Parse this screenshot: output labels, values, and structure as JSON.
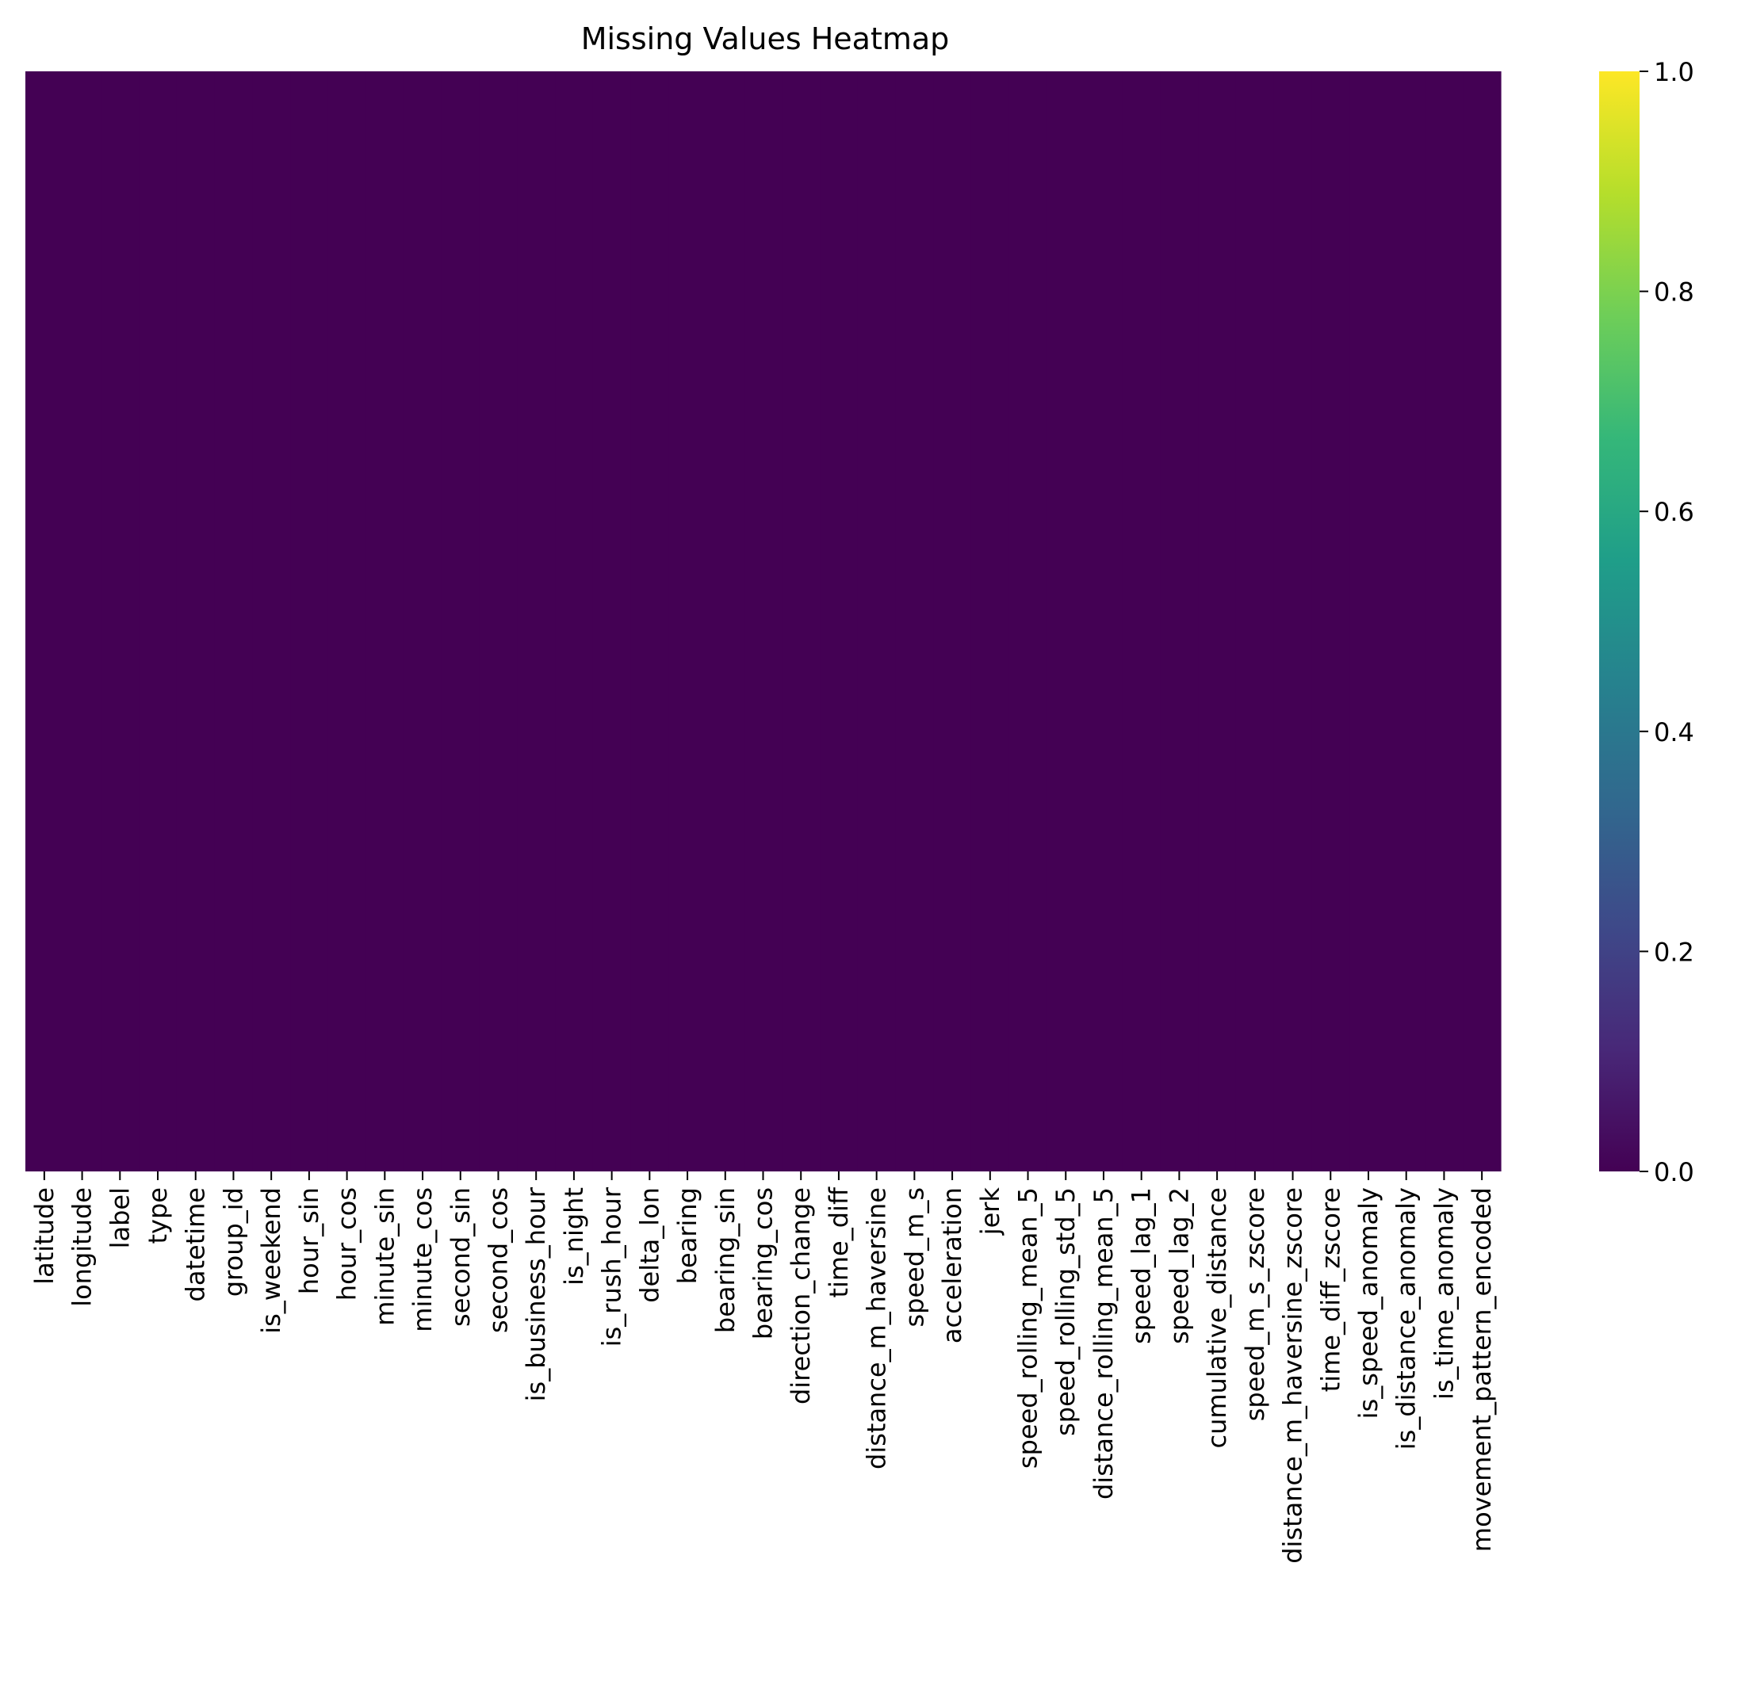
{
  "chart_data": {
    "type": "heatmap",
    "title": "Missing Values Heatmap",
    "xlabel": "",
    "ylabel": "",
    "columns": [
      "latitude",
      "longitude",
      "label",
      "type",
      "datetime",
      "group_id",
      "is_weekend",
      "hour_sin",
      "hour_cos",
      "minute_sin",
      "minute_cos",
      "second_sin",
      "second_cos",
      "is_business_hour",
      "is_night",
      "is_rush_hour",
      "delta_lon",
      "bearing",
      "bearing_sin",
      "bearing_cos",
      "direction_change",
      "time_diff",
      "distance_m_haversine",
      "speed_m_s",
      "acceleration",
      "jerk",
      "speed_rolling_mean_5",
      "speed_rolling_std_5",
      "distance_rolling_mean_5",
      "speed_lag_1",
      "speed_lag_2",
      "cumulative_distance",
      "speed_m_s_zscore",
      "distance_m_haversine_zscore",
      "time_diff_zscore",
      "is_speed_anomaly",
      "is_distance_anomaly",
      "is_time_anomaly",
      "movement_pattern_encoded"
    ],
    "values_description_uniform": 0,
    "uniform_value": 0.0,
    "y_tick_labels_shown": false,
    "colorbar": {
      "colormap": "viridis",
      "range": [
        0.0,
        1.0
      ],
      "ticks": [
        0.0,
        0.2,
        0.4,
        0.6,
        0.8,
        1.0
      ],
      "tick_labels": [
        "0.0",
        "0.2",
        "0.4",
        "0.6",
        "0.8",
        "1.0"
      ]
    },
    "colors": {
      "cell": "#440154",
      "viridis_stops": [
        "#440154",
        "#482878",
        "#3e4989",
        "#31688e",
        "#26828e",
        "#1f9e89",
        "#35b779",
        "#6ece58",
        "#b5de2b",
        "#fde725"
      ]
    }
  }
}
